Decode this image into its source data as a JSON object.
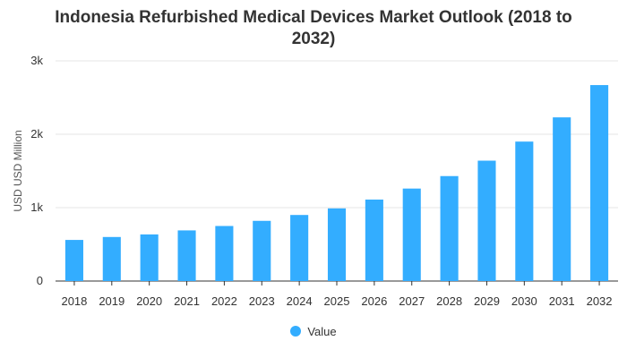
{
  "chart_data": {
    "type": "bar",
    "title": "Indonesia Refurbished Medical Devices Market Outlook (2018 to 2032)",
    "xlabel": "",
    "ylabel": "USD USD Million",
    "categories": [
      "2018",
      "2019",
      "2020",
      "2021",
      "2022",
      "2023",
      "2024",
      "2025",
      "2026",
      "2027",
      "2028",
      "2029",
      "2030",
      "2031",
      "2032"
    ],
    "series": [
      {
        "name": "Value",
        "values": [
          560,
          600,
          635,
          690,
          750,
          820,
          900,
          990,
          1110,
          1260,
          1430,
          1640,
          1900,
          2230,
          2670
        ]
      }
    ],
    "ylim": [
      0,
      3000
    ],
    "yticks": [
      0,
      1000,
      2000,
      3000
    ],
    "ytick_labels": [
      "0",
      "1k",
      "2k",
      "3k"
    ],
    "grid": true,
    "legend_position": "bottom-center",
    "bar_color": "#33adff"
  }
}
